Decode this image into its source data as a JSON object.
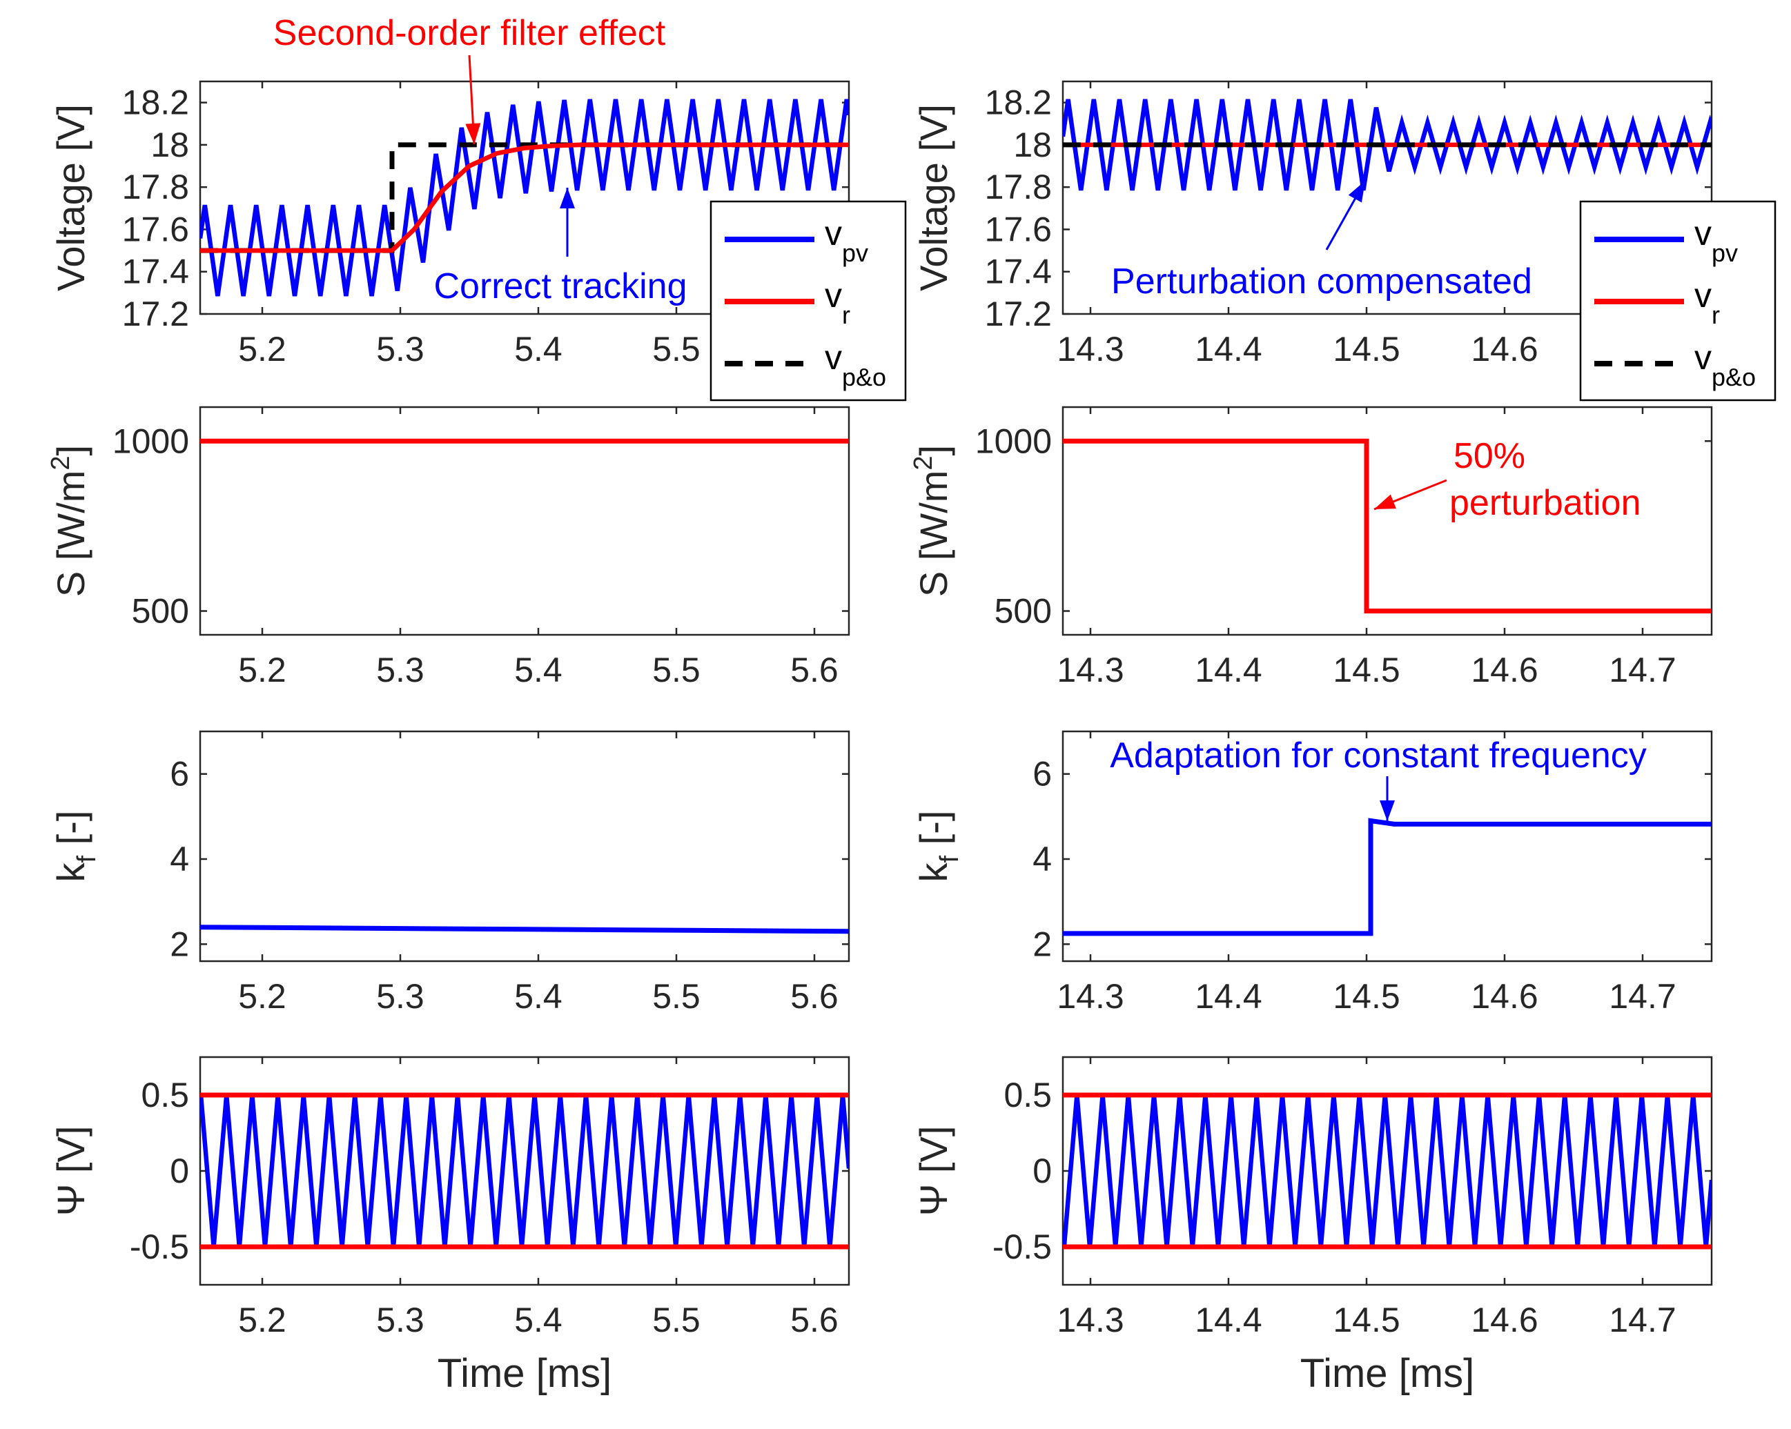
{
  "colors": {
    "blue": "#0000ff",
    "red": "#ff0000",
    "black": "#000000",
    "axis": "#262626"
  },
  "chart_data": [
    {
      "id": "voltage-left",
      "type": "line",
      "ylabel": "Voltage [V]",
      "xlim": [
        5.155,
        5.625
      ],
      "ylim": [
        17.2,
        18.3
      ],
      "yticks": [
        "17.2",
        "17.4",
        "17.6",
        "17.8",
        "18",
        "18.2"
      ],
      "xticks": [
        "5.2",
        "5.3",
        "5.4",
        "5.5"
      ],
      "series": [
        {
          "name": "v_pv",
          "sub": "pv",
          "color": "#0000ff",
          "description": "triangular oscillation around reference, period ~0.0186 ms, amplitude ~0.22 V",
          "x": [
            5.155,
            5.625
          ]
        },
        {
          "name": "v_r",
          "sub": "r",
          "color": "#ff0000",
          "x": [
            5.155,
            5.294,
            5.31,
            5.33,
            5.35,
            5.37,
            5.39,
            5.41,
            5.43,
            5.625
          ],
          "y": [
            17.5,
            17.5,
            17.6,
            17.78,
            17.9,
            17.96,
            17.985,
            17.995,
            18.0,
            18.0
          ]
        },
        {
          "name": "v_p&o",
          "sub": "p&o",
          "color": "#000000",
          "dashed": true,
          "x": [
            5.155,
            5.294,
            5.294,
            5.625
          ],
          "y": [
            17.5,
            17.5,
            18.0,
            18.0
          ]
        }
      ],
      "legend": [
        "v",
        "v",
        "v"
      ],
      "annotations": [
        "Second-order filter effect",
        "Correct tracking"
      ]
    },
    {
      "id": "voltage-right",
      "type": "line",
      "ylabel": "Voltage [V]",
      "xlim": [
        14.28,
        14.75
      ],
      "ylim": [
        17.2,
        18.3
      ],
      "yticks": [
        "17.2",
        "17.4",
        "17.6",
        "17.8",
        "18",
        "18.2"
      ],
      "xticks": [
        "14.3",
        "14.4",
        "14.5",
        "14.6"
      ],
      "series": [
        {
          "name": "v_pv",
          "sub": "pv",
          "color": "#0000ff",
          "description": "oscillation amplitude ~0.22 V before 14.5 ms, ~0.1 V after",
          "x": [
            14.28,
            14.75
          ]
        },
        {
          "name": "v_r",
          "sub": "r",
          "color": "#ff0000",
          "x": [
            14.28,
            14.75
          ],
          "y": [
            18.0,
            18.0
          ]
        },
        {
          "name": "v_p&o",
          "sub": "p&o",
          "color": "#000000",
          "dashed": true,
          "x": [
            14.28,
            14.75
          ],
          "y": [
            18.0,
            18.0
          ]
        }
      ],
      "legend": [
        "v",
        "v",
        "v"
      ],
      "annotations": [
        "Perturbation compensated"
      ]
    },
    {
      "id": "irradiance-left",
      "type": "line",
      "ylabel": "S [W/m",
      "ylabel_sup": "2",
      "ylabel_end": "]",
      "xlim": [
        5.155,
        5.625
      ],
      "ylim": [
        430,
        1100
      ],
      "yticks": [
        "500",
        "1000"
      ],
      "xticks": [
        "5.2",
        "5.3",
        "5.4",
        "5.5",
        "5.6"
      ],
      "series": [
        {
          "name": "S",
          "color": "#ff0000",
          "x": [
            5.155,
            5.625
          ],
          "y": [
            1000,
            1000
          ]
        }
      ]
    },
    {
      "id": "irradiance-right",
      "type": "line",
      "ylabel": "S [W/m",
      "ylabel_sup": "2",
      "ylabel_end": "]",
      "xlim": [
        14.28,
        14.75
      ],
      "ylim": [
        430,
        1100
      ],
      "yticks": [
        "500",
        "1000"
      ],
      "xticks": [
        "14.3",
        "14.4",
        "14.5",
        "14.6",
        "14.7"
      ],
      "series": [
        {
          "name": "S",
          "color": "#ff0000",
          "x": [
            14.28,
            14.5,
            14.5,
            14.75
          ],
          "y": [
            1000,
            1000,
            500,
            500
          ]
        }
      ],
      "annotations": [
        "50%",
        "perturbation"
      ]
    },
    {
      "id": "kf-left",
      "type": "line",
      "ylabel": "k",
      "ylabel_sub": "f",
      "ylabel_end": " [-]",
      "xlim": [
        5.155,
        5.625
      ],
      "ylim": [
        1.6,
        7.0
      ],
      "yticks": [
        "2",
        "4",
        "6"
      ],
      "xticks": [
        "5.2",
        "5.3",
        "5.4",
        "5.5",
        "5.6"
      ],
      "series": [
        {
          "name": "k_f",
          "color": "#0000ff",
          "x": [
            5.155,
            5.625
          ],
          "y": [
            2.4,
            2.3
          ]
        }
      ]
    },
    {
      "id": "kf-right",
      "type": "line",
      "ylabel": "k",
      "ylabel_sub": "f",
      "ylabel_end": " [-]",
      "xlim": [
        14.28,
        14.75
      ],
      "ylim": [
        1.6,
        7.0
      ],
      "yticks": [
        "2",
        "4",
        "6"
      ],
      "xticks": [
        "14.3",
        "14.4",
        "14.5",
        "14.6",
        "14.7"
      ],
      "series": [
        {
          "name": "k_f",
          "color": "#0000ff",
          "x": [
            14.28,
            14.503,
            14.503,
            14.52,
            14.75
          ],
          "y": [
            2.25,
            2.25,
            4.9,
            4.82,
            4.82
          ]
        }
      ],
      "annotations": [
        "Adaptation for constant frequency"
      ]
    },
    {
      "id": "psi-left",
      "type": "line",
      "ylabel": "Ψ [V]",
      "xlabel": "Time [ms]",
      "xlim": [
        5.155,
        5.625
      ],
      "ylim": [
        -0.75,
        0.75
      ],
      "yticks": [
        "-0.5",
        "0",
        "0.5"
      ],
      "xticks": [
        "5.2",
        "5.3",
        "5.4",
        "5.5",
        "5.6"
      ],
      "series": [
        {
          "name": "psi",
          "color": "#0000ff",
          "description": "triangular wave between -0.5 and 0.5 V, period ~0.0186 ms",
          "x": [
            5.155,
            5.625
          ]
        },
        {
          "name": "upper bound",
          "color": "#ff0000",
          "x": [
            5.155,
            5.625
          ],
          "y": [
            0.5,
            0.5
          ]
        },
        {
          "name": "lower bound",
          "color": "#ff0000",
          "x": [
            5.155,
            5.625
          ],
          "y": [
            -0.5,
            -0.5
          ]
        }
      ]
    },
    {
      "id": "psi-right",
      "type": "line",
      "ylabel": "Ψ [V]",
      "xlabel": "Time [ms]",
      "xlim": [
        14.28,
        14.75
      ],
      "ylim": [
        -0.75,
        0.75
      ],
      "yticks": [
        "-0.5",
        "0",
        "0.5"
      ],
      "xticks": [
        "14.3",
        "14.4",
        "14.5",
        "14.6",
        "14.7"
      ],
      "series": [
        {
          "name": "psi",
          "color": "#0000ff",
          "description": "triangular wave between -0.5 and 0.5 V, period ~0.0186 ms",
          "x": [
            14.28,
            14.75
          ]
        },
        {
          "name": "upper bound",
          "color": "#ff0000",
          "x": [
            14.28,
            14.75
          ],
          "y": [
            0.5,
            0.5
          ]
        },
        {
          "name": "lower bound",
          "color": "#ff0000",
          "x": [
            14.28,
            14.75
          ],
          "y": [
            -0.5,
            -0.5
          ]
        }
      ]
    }
  ]
}
